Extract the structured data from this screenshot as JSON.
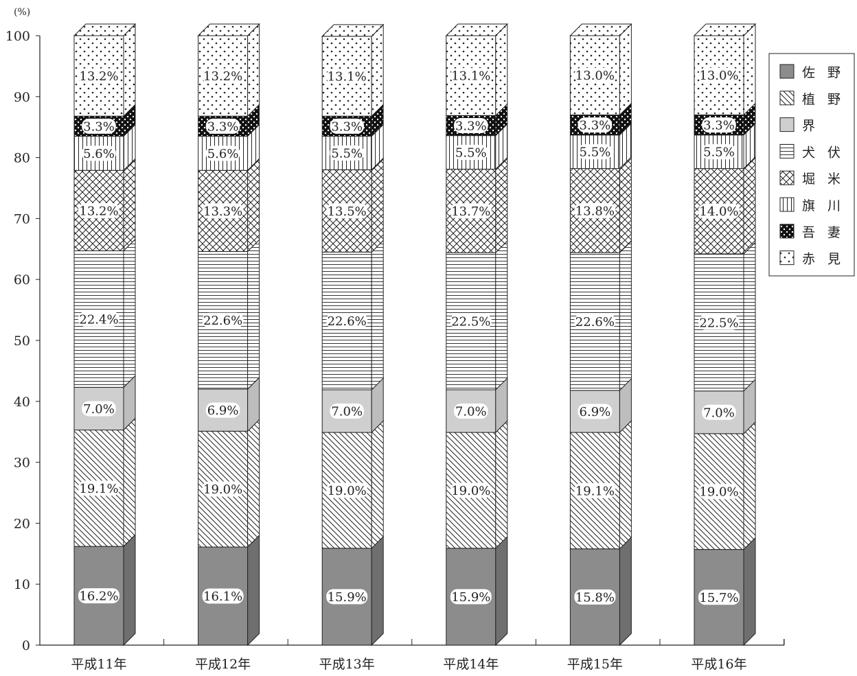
{
  "chart_data": {
    "type": "bar",
    "stacked": true,
    "three_d": true,
    "y_unit": "(%)",
    "ylim": [
      0,
      100
    ],
    "yticks": [
      0,
      10,
      20,
      30,
      40,
      50,
      60,
      70,
      80,
      90,
      100
    ],
    "categories": [
      "平成11年",
      "平成12年",
      "平成13年",
      "平成14年",
      "平成15年",
      "平成16年"
    ],
    "series": [
      {
        "name": "佐 野",
        "pattern": "solid-gray",
        "values": [
          16.2,
          16.1,
          15.9,
          15.9,
          15.8,
          15.7
        ],
        "labels": [
          "16.2%",
          "16.1%",
          "15.9%",
          "15.9%",
          "15.8%",
          "15.7%"
        ]
      },
      {
        "name": "植 野",
        "pattern": "diagonal-hatch",
        "values": [
          19.1,
          19.0,
          19.0,
          19.0,
          19.1,
          19.0
        ],
        "labels": [
          "19.1%",
          "19.0%",
          "19.0%",
          "19.0%",
          "19.1%",
          "19.0%"
        ]
      },
      {
        "name": "界",
        "pattern": "light-gray",
        "values": [
          7.0,
          6.9,
          7.0,
          7.0,
          6.9,
          7.0
        ],
        "labels": [
          "7.0%",
          "6.9%",
          "7.0%",
          "7.0%",
          "6.9%",
          "7.0%"
        ]
      },
      {
        "name": "犬 伏",
        "pattern": "horizontal-lines",
        "values": [
          22.4,
          22.6,
          22.6,
          22.5,
          22.6,
          22.5
        ],
        "labels": [
          "22.4%",
          "22.6%",
          "22.6%",
          "22.5%",
          "22.6%",
          "22.5%"
        ]
      },
      {
        "name": "堀 米",
        "pattern": "crosshatch",
        "values": [
          13.2,
          13.3,
          13.5,
          13.7,
          13.8,
          14.0
        ],
        "labels": [
          "13.2%",
          "13.3%",
          "13.5%",
          "13.7%",
          "13.8%",
          "14.0%"
        ]
      },
      {
        "name": "旗 川",
        "pattern": "vertical-lines",
        "values": [
          5.6,
          5.6,
          5.5,
          5.5,
          5.5,
          5.5
        ],
        "labels": [
          "5.6%",
          "5.6%",
          "5.5%",
          "5.5%",
          "5.5%",
          "5.5%"
        ]
      },
      {
        "name": "吾 妻",
        "pattern": "black-dots",
        "values": [
          3.3,
          3.3,
          3.3,
          3.3,
          3.3,
          3.3
        ],
        "labels": [
          "3.3%",
          "3.3%",
          "3.3%",
          "3.3%",
          "3.3%",
          "3.3%"
        ]
      },
      {
        "name": "赤 見",
        "pattern": "dotted",
        "values": [
          13.2,
          13.2,
          13.1,
          13.1,
          13.0,
          13.0
        ],
        "labels": [
          "13.2%",
          "13.2%",
          "13.1%",
          "13.1%",
          "13.0%",
          "13.0%"
        ]
      }
    ],
    "legend_position": "right",
    "colors": {
      "solid_gray": "#8c8c8c",
      "light_gray": "#cfcfcf",
      "black": "#111111",
      "line": "#222222"
    }
  }
}
